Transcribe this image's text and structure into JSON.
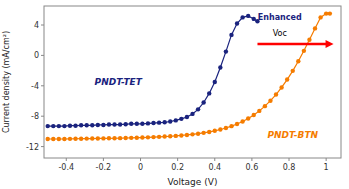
{
  "chart_data": {
    "type": "line",
    "xlabel": "Voltage (V)",
    "ylabel": "Current density (mA/cm²)",
    "xlim": [
      -0.52,
      1.08
    ],
    "ylim": [
      -13.5,
      6.5
    ],
    "xticks": [
      -0.4,
      -0.2,
      0.0,
      0.2,
      0.4,
      0.6,
      0.8,
      1.0
    ],
    "yticks": [
      -12,
      -8,
      -4,
      0,
      4
    ],
    "series": [
      {
        "name": "PNDT-BTN",
        "color": "#f57c00",
        "marker": "circle",
        "x": [
          -0.5,
          -0.47,
          -0.44,
          -0.41,
          -0.38,
          -0.35,
          -0.32,
          -0.29,
          -0.26,
          -0.23,
          -0.2,
          -0.17,
          -0.14,
          -0.11,
          -0.08,
          -0.05,
          -0.02,
          0.01,
          0.04,
          0.07,
          0.1,
          0.13,
          0.16,
          0.19,
          0.22,
          0.25,
          0.28,
          0.31,
          0.34,
          0.37,
          0.4,
          0.43,
          0.46,
          0.49,
          0.52,
          0.55,
          0.58,
          0.61,
          0.64,
          0.67,
          0.7,
          0.73,
          0.76,
          0.79,
          0.82,
          0.85,
          0.88,
          0.91,
          0.94,
          0.97,
          1.0,
          1.02
        ],
        "values": [
          -11.0,
          -11.0,
          -11.0,
          -11.0,
          -10.98,
          -10.97,
          -10.96,
          -10.95,
          -10.94,
          -10.93,
          -10.92,
          -10.91,
          -10.9,
          -10.89,
          -10.87,
          -10.85,
          -10.83,
          -10.81,
          -10.78,
          -10.75,
          -10.72,
          -10.68,
          -10.64,
          -10.59,
          -10.53,
          -10.47,
          -10.39,
          -10.3,
          -10.19,
          -10.07,
          -9.92,
          -9.75,
          -9.55,
          -9.31,
          -9.03,
          -8.7,
          -8.3,
          -7.84,
          -7.3,
          -6.68,
          -5.96,
          -5.15,
          -4.22,
          -3.18,
          -2.03,
          -0.77,
          0.6,
          2.05,
          3.55,
          5.0,
          5.5,
          5.5
        ]
      },
      {
        "name": "PNDT-TET",
        "color": "#1a237e",
        "marker": "circle",
        "x": [
          -0.5,
          -0.47,
          -0.44,
          -0.41,
          -0.38,
          -0.35,
          -0.32,
          -0.29,
          -0.26,
          -0.23,
          -0.2,
          -0.17,
          -0.14,
          -0.11,
          -0.08,
          -0.05,
          -0.02,
          0.01,
          0.04,
          0.07,
          0.1,
          0.13,
          0.16,
          0.19,
          0.22,
          0.25,
          0.28,
          0.31,
          0.34,
          0.37,
          0.4,
          0.43,
          0.46,
          0.49,
          0.52,
          0.55,
          0.58,
          0.61,
          0.63
        ],
        "values": [
          -9.3,
          -9.3,
          -9.3,
          -9.3,
          -9.25,
          -9.25,
          -9.2,
          -9.2,
          -9.2,
          -9.15,
          -9.15,
          -9.1,
          -9.1,
          -9.1,
          -9.05,
          -9.0,
          -9.0,
          -9.0,
          -8.95,
          -8.9,
          -8.85,
          -8.8,
          -8.7,
          -8.55,
          -8.35,
          -8.1,
          -7.7,
          -7.1,
          -6.2,
          -5.0,
          -3.5,
          -1.6,
          0.5,
          2.7,
          4.2,
          5.0,
          5.2,
          4.8,
          4.5
        ]
      }
    ],
    "annotations": [
      {
        "text": "Enhanced",
        "color": "#1a237e"
      },
      {
        "text": "Voc",
        "color": "#000000"
      }
    ]
  }
}
